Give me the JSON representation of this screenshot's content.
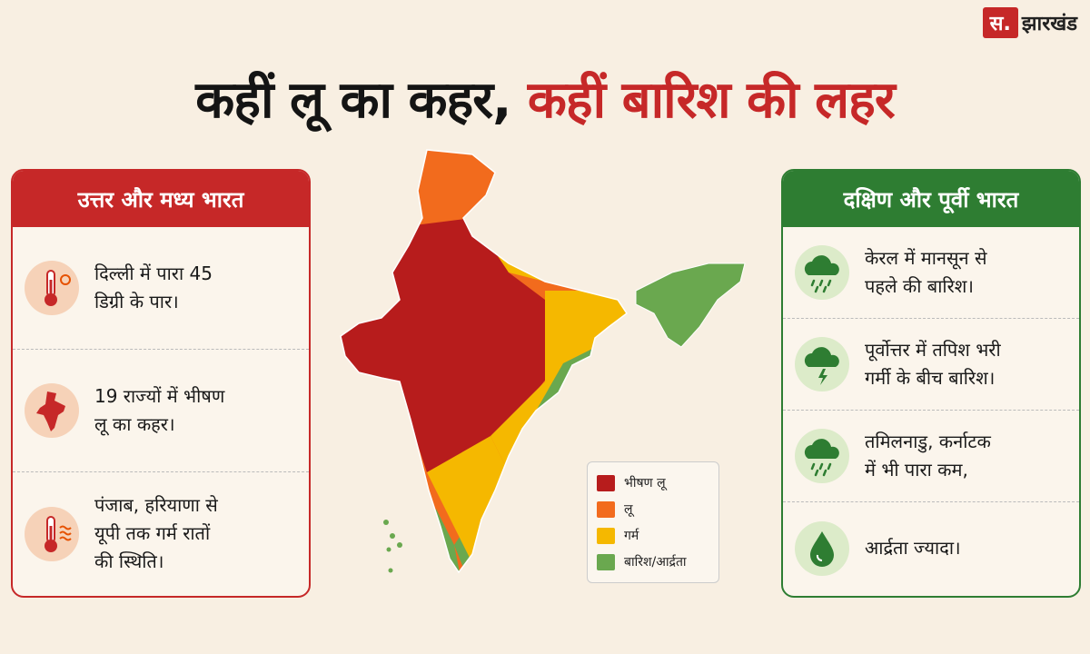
{
  "header": {
    "logo_mark": "स.",
    "logo_name": "झारखंड",
    "title_part1": "कहीं लू का कहर,",
    "title_part2": "कहीं बारिश की लहर"
  },
  "left_panel": {
    "heading": "उत्तर और मध्य भारत",
    "items": [
      {
        "lines": [
          "दिल्ली में पारा 45",
          "डिग्री के पार।"
        ]
      },
      {
        "lines": [
          "19 राज्यों में भीषण",
          "लू का कहर।"
        ]
      },
      {
        "lines": [
          "पंजाब, हरियाणा से",
          "यूपी तक गर्म रातों",
          "की स्थिति।"
        ]
      }
    ]
  },
  "right_panel": {
    "heading": "दक्षिण और पूर्वी भारत",
    "items": [
      {
        "lines": [
          "केरल में मानसून से",
          "पहले की बारिश।"
        ]
      },
      {
        "lines": [
          "पूर्वोत्तर में तपिश भरी",
          "गर्मी के बीच बारिश।"
        ]
      },
      {
        "lines": [
          "तमिलनाडु, कर्नाटक",
          "में भी पारा कम,"
        ]
      },
      {
        "lines": [
          "आर्द्रता ज्यादा।"
        ]
      }
    ]
  },
  "legend": [
    {
      "label": "भीषण लू",
      "color": "#b71c1c"
    },
    {
      "label": "लू",
      "color": "#f26b1d"
    },
    {
      "label": "गर्म",
      "color": "#f5b800"
    },
    {
      "label": "बारिश/आर्द्रता",
      "color": "#6aa84f"
    }
  ]
}
